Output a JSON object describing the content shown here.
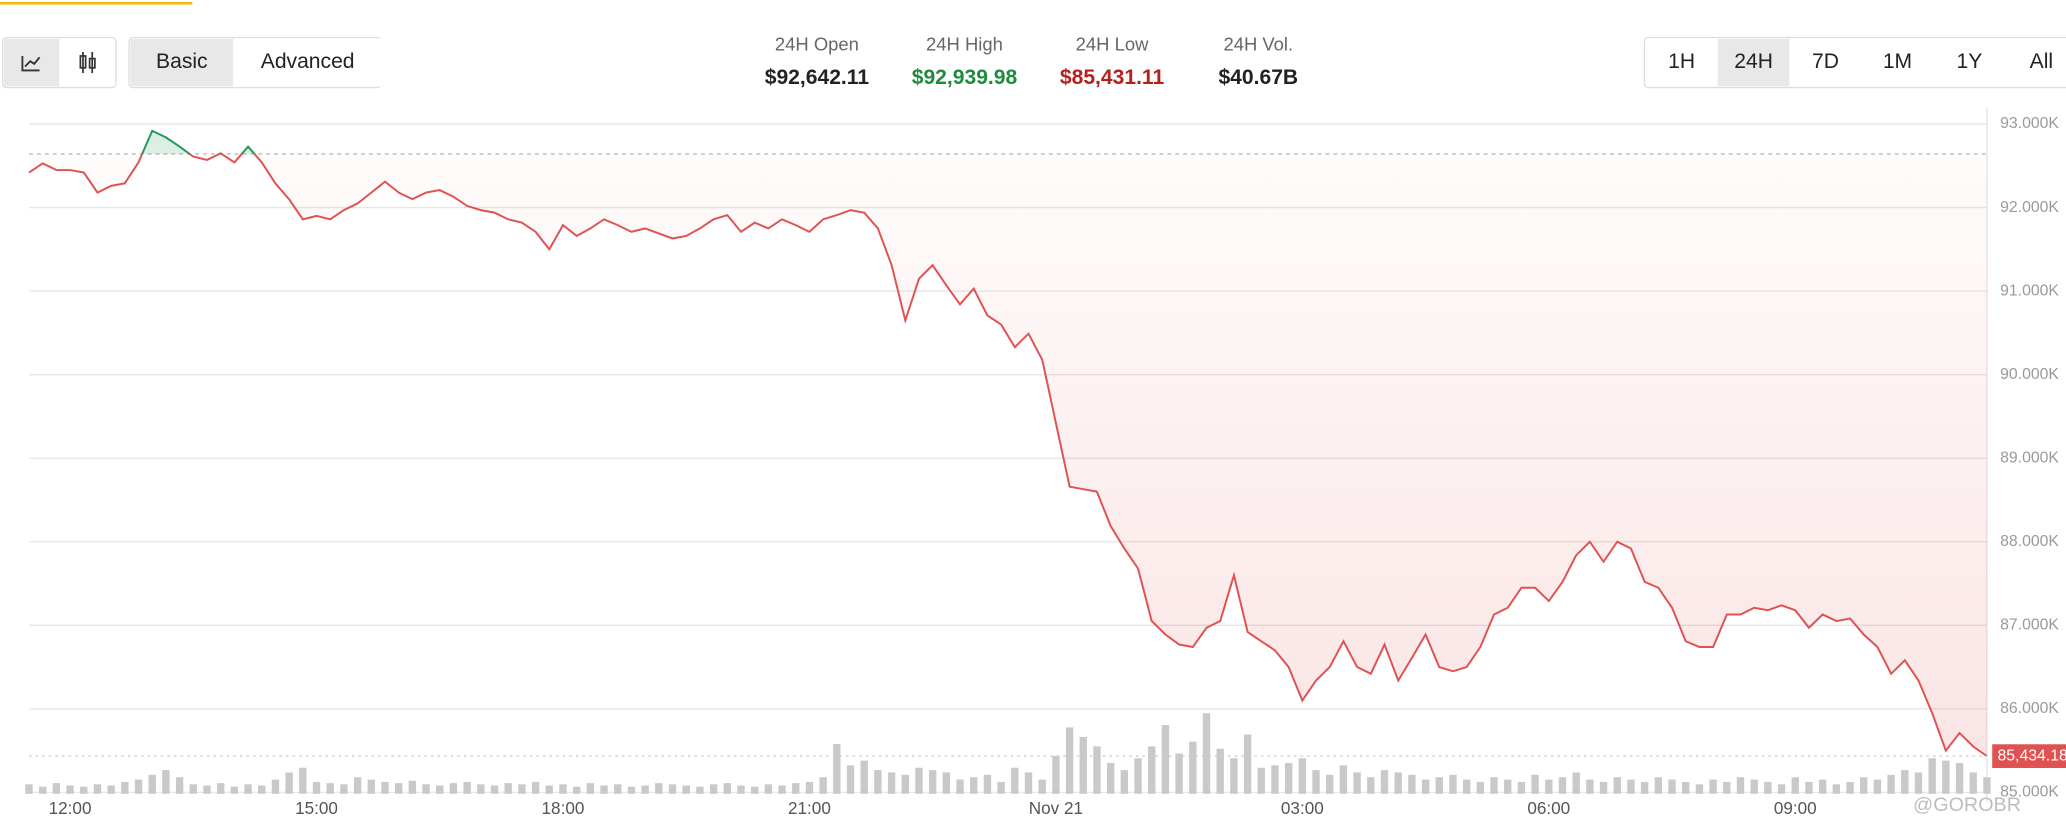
{
  "ui": {
    "modes": [
      "Basic",
      "Advanced"
    ],
    "active_mode": 0,
    "ranges": [
      "1H",
      "24H",
      "7D",
      "1M",
      "1Y",
      "All"
    ],
    "active_range": 1,
    "watermark": "@GOROBR"
  },
  "stats": [
    {
      "label": "24H Open",
      "value": "$92,642.11",
      "color": "#222222"
    },
    {
      "label": "24H High",
      "value": "$92,939.98",
      "color": "#1e8a3c"
    },
    {
      "label": "24H Low",
      "value": "$85,431.11",
      "color": "#b3201e"
    },
    {
      "label": "24H Vol.",
      "value": "$40.67B",
      "color": "#222222"
    }
  ],
  "chart_data": {
    "type": "line",
    "categories": [
      null,
      null,
      null,
      "12:00",
      null,
      null,
      null,
      null,
      null,
      null,
      null,
      null,
      null,
      null,
      null,
      null,
      null,
      null,
      null,
      null,
      null,
      "15:00",
      null,
      null,
      null,
      null,
      null,
      null,
      null,
      null,
      null,
      null,
      null,
      null,
      null,
      null,
      null,
      null,
      null,
      "18:00",
      null,
      null,
      null,
      null,
      null,
      null,
      null,
      null,
      null,
      null,
      null,
      null,
      null,
      null,
      null,
      null,
      null,
      "21:00",
      null,
      null,
      null,
      null,
      null,
      null,
      null,
      null,
      null,
      null,
      null,
      null,
      null,
      null,
      null,
      null,
      null,
      "Nov 21",
      null,
      null,
      null,
      null,
      null,
      null,
      null,
      null,
      null,
      null,
      null,
      null,
      null,
      null,
      null,
      null,
      null,
      "03:00",
      null,
      null,
      null,
      null,
      null,
      null,
      null,
      null,
      null,
      null,
      null,
      null,
      null,
      null,
      null,
      null,
      null,
      "06:00",
      null,
      null,
      null,
      null,
      null,
      null,
      null,
      null,
      null,
      null,
      null,
      null,
      null,
      null,
      null,
      null,
      null,
      "09:00",
      null,
      null,
      null,
      null,
      null,
      null,
      null,
      null,
      null,
      null,
      null,
      null,
      null,
      null
    ],
    "series": [
      {
        "color_up": "#1f9a5c",
        "color_down": "#e05252",
        "values": [
          92420,
          92530,
          92450,
          92450,
          92420,
          92180,
          92260,
          92290,
          92540,
          92920,
          92840,
          92730,
          92610,
          92570,
          92650,
          92540,
          92730,
          92540,
          92290,
          92100,
          91860,
          91900,
          91860,
          91970,
          92050,
          92180,
          92310,
          92180,
          92100,
          92180,
          92210,
          92130,
          92020,
          91970,
          91940,
          91860,
          91820,
          91710,
          91500,
          91790,
          91660,
          91750,
          91860,
          91790,
          91710,
          91750,
          91690,
          91630,
          91660,
          91750,
          91860,
          91910,
          91710,
          91820,
          91750,
          91860,
          91790,
          91710,
          91860,
          91910,
          91970,
          91940,
          91750,
          91310,
          90650,
          91150,
          91310,
          91070,
          90840,
          91030,
          90710,
          90600,
          90330,
          90490,
          90180,
          89420,
          88660,
          88630,
          88600,
          88190,
          87920,
          87680,
          87050,
          86890,
          86770,
          86740,
          86970,
          87050,
          87600,
          86920,
          86810,
          86700,
          86500,
          86100,
          86340,
          86500,
          86810,
          86500,
          86420,
          86770,
          86340,
          86610,
          86890,
          86500,
          86450,
          86500,
          86740,
          87130,
          87210,
          87450,
          87450,
          87290,
          87520,
          87840,
          88000,
          87760,
          88000,
          87920,
          87520,
          87450,
          87210,
          86810,
          86740,
          86740,
          87130,
          87130,
          87210,
          87180,
          87240,
          87180,
          86970,
          87130,
          87050,
          87080,
          86890,
          86740,
          86420,
          86580,
          86340,
          85950,
          85500,
          85710,
          85550,
          85434.18
        ]
      }
    ],
    "volume": {
      "color": "#c9c9c9",
      "values": [
        8,
        6,
        9,
        7,
        6,
        8,
        7,
        10,
        12,
        16,
        20,
        14,
        8,
        7,
        9,
        6,
        8,
        7,
        12,
        18,
        22,
        10,
        9,
        8,
        14,
        12,
        10,
        9,
        11,
        8,
        7,
        9,
        10,
        8,
        7,
        9,
        8,
        10,
        7,
        8,
        6,
        9,
        7,
        8,
        6,
        7,
        9,
        8,
        7,
        6,
        8,
        9,
        7,
        6,
        8,
        7,
        9,
        10,
        14,
        42,
        24,
        28,
        20,
        18,
        16,
        22,
        20,
        18,
        12,
        14,
        16,
        10,
        22,
        18,
        12,
        32,
        56,
        48,
        40,
        26,
        20,
        30,
        40,
        58,
        34,
        44,
        68,
        38,
        30,
        50,
        22,
        24,
        26,
        30,
        20,
        16,
        24,
        18,
        14,
        20,
        18,
        16,
        12,
        14,
        16,
        12,
        10,
        14,
        12,
        10,
        16,
        12,
        14,
        18,
        12,
        10,
        14,
        12,
        10,
        14,
        12,
        10,
        8,
        12,
        10,
        14,
        12,
        10,
        8,
        14,
        10,
        12,
        8,
        10,
        14,
        12,
        16,
        20,
        18,
        30,
        28,
        26,
        18,
        14
      ]
    },
    "baseline": 92642.11,
    "current_price": {
      "value": 85434.18,
      "label": "85,434.18"
    },
    "ylim": [
      84920,
      93200
    ],
    "yticks": [
      {
        "value": 85000,
        "label": "85.000K"
      },
      {
        "value": 86000,
        "label": "86.000K"
      },
      {
        "value": 87000,
        "label": "87.000K"
      },
      {
        "value": 88000,
        "label": "88.000K"
      },
      {
        "value": 89000,
        "label": "89.000K"
      },
      {
        "value": 90000,
        "label": "90.000K"
      },
      {
        "value": 91000,
        "label": "91.000K"
      },
      {
        "value": 92000,
        "label": "92.000K"
      },
      {
        "value": 93000,
        "label": "93.000K"
      }
    ],
    "grid": true
  }
}
